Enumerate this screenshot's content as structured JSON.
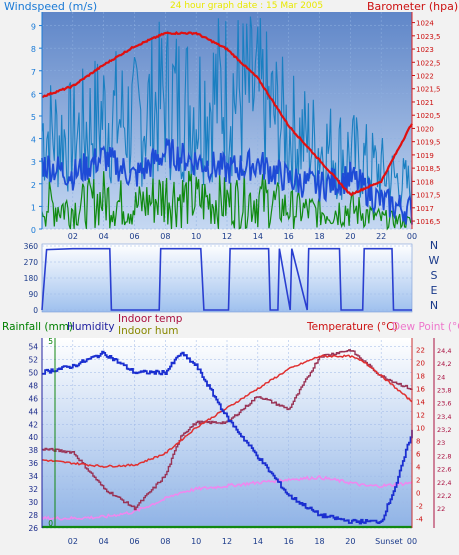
{
  "top": {
    "left_title": "Windspeed (m/s)",
    "center_title": "24 hour graph date : 15 Mar 2005",
    "right_title": "Barometer (hpa)",
    "left_ticks": [
      "0",
      "1",
      "2",
      "3",
      "4",
      "5",
      "6",
      "7",
      "8",
      "9"
    ],
    "right_ticks": [
      "1016,5",
      "1017",
      "1017,5",
      "1018",
      "1018,5",
      "1019",
      "1019,5",
      "1020",
      "1020,5",
      "1021",
      "1021,5",
      "1022",
      "1022,5",
      "1023",
      "1023,5",
      "1024"
    ],
    "x_ticks": [
      "02",
      "04",
      "06",
      "08",
      "10",
      "12",
      "14",
      "16",
      "18",
      "20",
      "22",
      "00"
    ]
  },
  "mid": {
    "left_ticks": [
      "0",
      "90",
      "180",
      "270",
      "360"
    ],
    "compass": [
      "N",
      "W",
      "S",
      "E",
      "N"
    ]
  },
  "bottom": {
    "title_rainfall": "Rainfall (mm)",
    "title_humidity": "Humidity",
    "title_indoor_temp": "Indoor temp",
    "title_indoor_hum": "Indoor hum",
    "title_temperature": "Temperature (°C)",
    "title_dewpoint": "Dew Point (°C)",
    "left_ticks": [
      "26",
      "28",
      "30",
      "32",
      "34",
      "36",
      "38",
      "40",
      "42",
      "44",
      "46",
      "48",
      "50",
      "52",
      "54"
    ],
    "rain_ticks": [
      "0",
      "5"
    ],
    "temp_ticks": [
      "-4",
      "-2",
      "0",
      "2",
      "4",
      "6",
      "8",
      "10",
      "12",
      "14",
      "16",
      "18",
      "20",
      "22"
    ],
    "indoor_ticks": [
      "22",
      "22,2",
      "22,4",
      "22,6",
      "22,8",
      "23",
      "23,2",
      "23,4",
      "23,6",
      "23,8",
      "24",
      "24,2",
      "24,4"
    ],
    "x_ticks": [
      "02",
      "04",
      "06",
      "08",
      "10",
      "12",
      "14",
      "16",
      "18",
      "20",
      "Sunset",
      "00"
    ]
  },
  "colors": {
    "windspeed": "#1e4bd6",
    "gust": "#1a7fc1",
    "wind_avg": "#118a11",
    "barometer": "#e01010",
    "direction": "#2a3fd0",
    "humidity": "#1b2fd0",
    "indoor_temp": "#993355",
    "temperature": "#e03030",
    "dewpoint": "#ee88ee",
    "rain": "#118811",
    "title_green": "#008000",
    "title_red": "#cc1010",
    "title_yellow": "#e8e800",
    "title_blue": "#1a7ad6",
    "title_darkred": "#aa1040",
    "title_olive": "#888800",
    "title_pink": "#ee77cc",
    "title_navy": "#2020a0"
  },
  "chart_data": [
    {
      "type": "line",
      "title": "24 hour graph date : 15 Mar 2005",
      "ylabel": "Windspeed (m/s)",
      "y2label": "Barometer (hpa)",
      "ylim": [
        0,
        9.6
      ],
      "y2lim": [
        1016.2,
        1024.4
      ],
      "x": [
        0,
        2,
        4,
        6,
        8,
        10,
        12,
        14,
        16,
        18,
        20,
        22,
        24
      ],
      "series": [
        {
          "name": "Barometer (hpa)",
          "axis": "right",
          "values": [
            1021.2,
            1021.6,
            1022.4,
            1023.1,
            1023.6,
            1023.6,
            1023.0,
            1021.9,
            1020.1,
            1018.8,
            1017.5,
            1018.0,
            1020.2
          ]
        },
        {
          "axis": "left",
          "values": [
            2.9,
            2.4,
            3.2,
            2.3,
            3.4,
            3.0,
            2.6,
            2.9,
            2.2,
            1.9,
            2.3,
            1.2,
            0.8
          ]
        },
        {
          "axis": "left",
          "values": [
            6.0,
            5.5,
            7.0,
            6.5,
            8.0,
            7.5,
            8.5,
            8.0,
            6.0,
            5.0,
            4.5,
            3.5,
            2.5
          ]
        },
        {
          "axis": "left",
          "values": [
            1.5,
            1.2,
            1.8,
            1.3,
            2.0,
            1.7,
            1.6,
            1.8,
            1.2,
            1.0,
            1.2,
            0.6,
            0.4
          ]
        }
      ]
    },
    {
      "type": "line",
      "ylim": [
        0,
        360
      ],
      "x": [
        0,
        0.3,
        2,
        2.1,
        4.4,
        4.5,
        7.6,
        7.7,
        10.3,
        10.5,
        12.1,
        12.2,
        14.7,
        14.8,
        15.3,
        15.4,
        16.1,
        16.2,
        17.2,
        17.3,
        19.3,
        19.4,
        20.8,
        20.9,
        22.7,
        22.8,
        24
      ],
      "series": [
        {
          "values": [
            0,
            340,
            345,
            345,
            345,
            0,
            0,
            345,
            345,
            0,
            0,
            345,
            345,
            0,
            0,
            345,
            0,
            345,
            0,
            345,
            345,
            0,
            0,
            345,
            345,
            0,
            0
          ]
        }
      ]
    },
    {
      "type": "line",
      "ylim": [
        26,
        55
      ],
      "x": [
        0,
        2,
        4,
        6,
        8,
        9,
        10,
        12,
        14,
        16,
        18,
        20,
        21,
        22,
        23,
        24
      ],
      "series": [
        {
          "name": "Humidity",
          "axis": "left",
          "values": [
            50,
            51,
            53,
            50,
            50,
            53,
            51,
            43,
            37,
            31,
            28,
            27,
            27,
            27,
            33,
            41
          ]
        },
        {
          "name": "Indoor temp",
          "axis": "indoor",
          "values": [
            22.9,
            22.85,
            22.3,
            22.0,
            22.5,
            23.1,
            23.3,
            23.3,
            23.7,
            23.5,
            24.3,
            24.4,
            24.2,
            24.0,
            23.9,
            23.8
          ]
        },
        {
          "name": "Temperature (°C)",
          "axis": "temp",
          "values": [
            5,
            4.5,
            4,
            4.2,
            6,
            8,
            10,
            13,
            16,
            19,
            21,
            21,
            20,
            18,
            16,
            14
          ]
        },
        {
          "name": "Dew Point (°C)",
          "axis": "temp",
          "values": [
            -4,
            -4,
            -3.8,
            -3,
            -1,
            0,
            0.5,
            1,
            1.5,
            2,
            2.3,
            1.5,
            1.0,
            1.0,
            1.2,
            1.5
          ]
        },
        {
          "name": "Rainfall (mm)",
          "axis": "rain",
          "values": [
            0,
            0,
            0,
            0,
            0,
            0,
            0,
            0,
            0,
            0,
            0,
            0,
            0,
            0,
            0,
            0
          ]
        }
      ]
    }
  ]
}
